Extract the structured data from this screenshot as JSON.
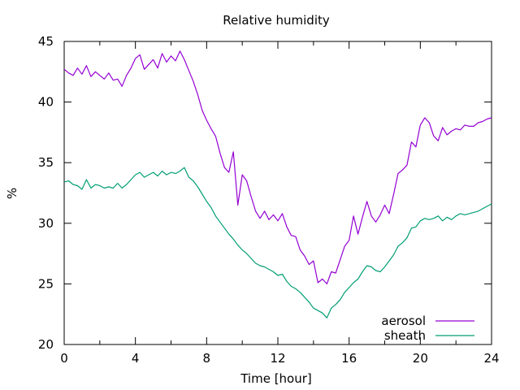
{
  "chart_data": {
    "type": "line",
    "title": "Relative humidity",
    "xlabel": "Time [hour]",
    "ylabel": "%",
    "xlim": [
      0,
      24
    ],
    "ylim": [
      20,
      45
    ],
    "xticks": [
      0,
      4,
      8,
      12,
      16,
      20,
      24
    ],
    "yticks": [
      20,
      25,
      30,
      35,
      40,
      45
    ],
    "grid": false,
    "legend": "bottom-right",
    "series": [
      {
        "name": "aerosol",
        "color": "#9400d3",
        "points": [
          [
            0,
            42.7
          ],
          [
            0.25,
            42.4
          ],
          [
            0.5,
            42.2
          ],
          [
            0.75,
            42.8
          ],
          [
            1.0,
            42.3
          ],
          [
            1.25,
            43.0
          ],
          [
            1.5,
            42.1
          ],
          [
            1.75,
            42.5
          ],
          [
            2.0,
            42.2
          ],
          [
            2.25,
            41.9
          ],
          [
            2.5,
            42.4
          ],
          [
            2.75,
            41.8
          ],
          [
            3.0,
            41.9
          ],
          [
            3.25,
            41.3
          ],
          [
            3.5,
            42.2
          ],
          [
            3.75,
            42.8
          ],
          [
            4.0,
            43.6
          ],
          [
            4.25,
            43.9
          ],
          [
            4.5,
            42.7
          ],
          [
            4.75,
            43.1
          ],
          [
            5.0,
            43.5
          ],
          [
            5.25,
            42.8
          ],
          [
            5.5,
            44.0
          ],
          [
            5.75,
            43.3
          ],
          [
            6.0,
            43.8
          ],
          [
            6.25,
            43.4
          ],
          [
            6.5,
            44.2
          ],
          [
            6.75,
            43.5
          ],
          [
            7.0,
            42.6
          ],
          [
            7.25,
            41.7
          ],
          [
            7.5,
            40.6
          ],
          [
            7.75,
            39.3
          ],
          [
            8.0,
            38.5
          ],
          [
            8.25,
            37.8
          ],
          [
            8.5,
            37.2
          ],
          [
            8.75,
            35.8
          ],
          [
            9.0,
            34.6
          ],
          [
            9.25,
            34.2
          ],
          [
            9.5,
            35.9
          ],
          [
            9.75,
            31.5
          ],
          [
            10.0,
            34.0
          ],
          [
            10.25,
            33.5
          ],
          [
            10.5,
            32.2
          ],
          [
            10.75,
            31.0
          ],
          [
            11.0,
            30.4
          ],
          [
            11.25,
            31.0
          ],
          [
            11.5,
            30.3
          ],
          [
            11.75,
            30.7
          ],
          [
            12.0,
            30.2
          ],
          [
            12.25,
            30.8
          ],
          [
            12.5,
            29.7
          ],
          [
            12.75,
            29.0
          ],
          [
            13.0,
            28.9
          ],
          [
            13.25,
            27.8
          ],
          [
            13.5,
            27.3
          ],
          [
            13.75,
            26.6
          ],
          [
            14.0,
            26.9
          ],
          [
            14.25,
            25.1
          ],
          [
            14.5,
            25.4
          ],
          [
            14.75,
            25.0
          ],
          [
            15.0,
            26.0
          ],
          [
            15.25,
            25.9
          ],
          [
            15.5,
            27.0
          ],
          [
            15.75,
            28.1
          ],
          [
            16.0,
            28.6
          ],
          [
            16.25,
            30.6
          ],
          [
            16.5,
            29.1
          ],
          [
            16.75,
            30.5
          ],
          [
            17.0,
            31.8
          ],
          [
            17.25,
            30.6
          ],
          [
            17.5,
            30.1
          ],
          [
            17.75,
            30.7
          ],
          [
            18.0,
            31.5
          ],
          [
            18.25,
            30.8
          ],
          [
            18.5,
            32.4
          ],
          [
            18.75,
            34.1
          ],
          [
            19.0,
            34.4
          ],
          [
            19.25,
            34.8
          ],
          [
            19.5,
            36.7
          ],
          [
            19.75,
            36.3
          ],
          [
            20.0,
            38.1
          ],
          [
            20.25,
            38.7
          ],
          [
            20.5,
            38.3
          ],
          [
            20.75,
            37.2
          ],
          [
            21.0,
            36.8
          ],
          [
            21.25,
            37.9
          ],
          [
            21.5,
            37.3
          ],
          [
            21.75,
            37.6
          ],
          [
            22.0,
            37.8
          ],
          [
            22.25,
            37.7
          ],
          [
            22.5,
            38.1
          ],
          [
            22.75,
            38.0
          ],
          [
            23.0,
            38.0
          ],
          [
            23.25,
            38.3
          ],
          [
            23.5,
            38.4
          ],
          [
            23.75,
            38.6
          ],
          [
            24.0,
            38.7
          ]
        ]
      },
      {
        "name": "sheath",
        "color": "#009e73",
        "points": [
          [
            0,
            33.4
          ],
          [
            0.25,
            33.5
          ],
          [
            0.5,
            33.2
          ],
          [
            0.75,
            33.1
          ],
          [
            1.0,
            32.8
          ],
          [
            1.25,
            33.6
          ],
          [
            1.5,
            32.9
          ],
          [
            1.75,
            33.2
          ],
          [
            2.0,
            33.1
          ],
          [
            2.25,
            32.9
          ],
          [
            2.5,
            33.0
          ],
          [
            2.75,
            32.9
          ],
          [
            3.0,
            33.3
          ],
          [
            3.25,
            32.9
          ],
          [
            3.5,
            33.2
          ],
          [
            3.75,
            33.6
          ],
          [
            4.0,
            34.0
          ],
          [
            4.25,
            34.2
          ],
          [
            4.5,
            33.8
          ],
          [
            4.75,
            34.0
          ],
          [
            5.0,
            34.2
          ],
          [
            5.25,
            33.9
          ],
          [
            5.5,
            34.3
          ],
          [
            5.75,
            34.0
          ],
          [
            6.0,
            34.2
          ],
          [
            6.25,
            34.1
          ],
          [
            6.5,
            34.3
          ],
          [
            6.75,
            34.6
          ],
          [
            7.0,
            33.8
          ],
          [
            7.25,
            33.5
          ],
          [
            7.5,
            33.0
          ],
          [
            7.75,
            32.4
          ],
          [
            8.0,
            31.8
          ],
          [
            8.25,
            31.3
          ],
          [
            8.5,
            30.6
          ],
          [
            8.75,
            30.1
          ],
          [
            9.0,
            29.6
          ],
          [
            9.25,
            29.1
          ],
          [
            9.5,
            28.7
          ],
          [
            9.75,
            28.2
          ],
          [
            10.0,
            27.8
          ],
          [
            10.25,
            27.5
          ],
          [
            10.5,
            27.1
          ],
          [
            10.75,
            26.7
          ],
          [
            11.0,
            26.5
          ],
          [
            11.25,
            26.4
          ],
          [
            11.5,
            26.2
          ],
          [
            11.75,
            26.0
          ],
          [
            12.0,
            25.7
          ],
          [
            12.25,
            25.8
          ],
          [
            12.5,
            25.2
          ],
          [
            12.75,
            24.8
          ],
          [
            13.0,
            24.6
          ],
          [
            13.25,
            24.3
          ],
          [
            13.5,
            23.9
          ],
          [
            13.75,
            23.5
          ],
          [
            14.0,
            23.0
          ],
          [
            14.25,
            22.8
          ],
          [
            14.5,
            22.6
          ],
          [
            14.75,
            22.2
          ],
          [
            15.0,
            23.0
          ],
          [
            15.25,
            23.3
          ],
          [
            15.5,
            23.7
          ],
          [
            15.75,
            24.3
          ],
          [
            16.0,
            24.7
          ],
          [
            16.25,
            25.1
          ],
          [
            16.5,
            25.4
          ],
          [
            16.75,
            26.0
          ],
          [
            17.0,
            26.5
          ],
          [
            17.25,
            26.4
          ],
          [
            17.5,
            26.1
          ],
          [
            17.75,
            26.0
          ],
          [
            18.0,
            26.4
          ],
          [
            18.25,
            26.9
          ],
          [
            18.5,
            27.4
          ],
          [
            18.75,
            28.1
          ],
          [
            19.0,
            28.4
          ],
          [
            19.25,
            28.8
          ],
          [
            19.5,
            29.6
          ],
          [
            19.75,
            29.7
          ],
          [
            20.0,
            30.2
          ],
          [
            20.25,
            30.4
          ],
          [
            20.5,
            30.3
          ],
          [
            20.75,
            30.4
          ],
          [
            21.0,
            30.6
          ],
          [
            21.25,
            30.2
          ],
          [
            21.5,
            30.5
          ],
          [
            21.75,
            30.3
          ],
          [
            22.0,
            30.6
          ],
          [
            22.25,
            30.8
          ],
          [
            22.5,
            30.7
          ],
          [
            22.75,
            30.8
          ],
          [
            23.0,
            30.9
          ],
          [
            23.25,
            31.0
          ],
          [
            23.5,
            31.2
          ],
          [
            23.75,
            31.4
          ],
          [
            24.0,
            31.6
          ]
        ]
      }
    ]
  }
}
